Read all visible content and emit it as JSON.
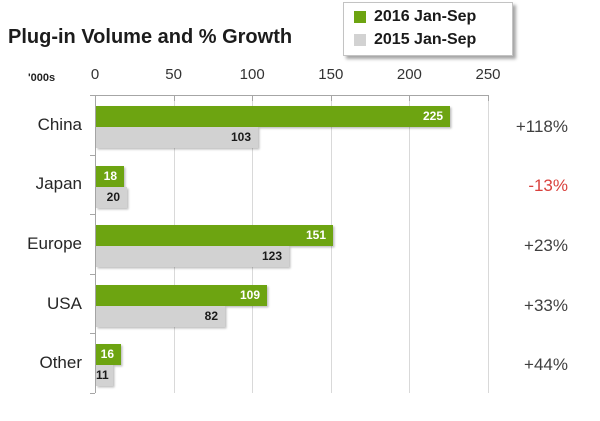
{
  "chart": {
    "title": "Plug-in Volume and % Growth",
    "unit_label": "'000s"
  },
  "colors": {
    "green": "#6da411",
    "gray": "#d2d2d2",
    "growth_positive": "#3f3f3f",
    "growth_negative": "#d9413d",
    "axis": "#a6a6a6",
    "grid": "#d9d9d9"
  },
  "chart_data": {
    "type": "bar",
    "orientation": "horizontal",
    "title": "Plug-in Volume and % Growth",
    "unit": "'000s",
    "categories": [
      "China",
      "Japan",
      "Europe",
      "USA",
      "Other"
    ],
    "series": [
      {
        "name": "2016 Jan-Sep",
        "color": "#6da411",
        "label_color": "#ffffff",
        "values": [
          225,
          18,
          151,
          109,
          16
        ]
      },
      {
        "name": "2015 Jan-Sep",
        "color": "#d2d2d2",
        "label_color": "#1a1a1a",
        "values": [
          103,
          20,
          123,
          82,
          11
        ]
      }
    ],
    "growth_labels": [
      {
        "text": "+118%",
        "color": "#3f3f3f"
      },
      {
        "text": "-13%",
        "color": "#d9413d"
      },
      {
        "text": "+23%",
        "color": "#3f3f3f"
      },
      {
        "text": "+33%",
        "color": "#3f3f3f"
      },
      {
        "text": "+44%",
        "color": "#3f3f3f"
      }
    ],
    "x_ticks": [
      0,
      50,
      100,
      150,
      200,
      250
    ],
    "xlim": [
      0,
      250
    ],
    "grid": true,
    "legend_position": "top-right"
  }
}
